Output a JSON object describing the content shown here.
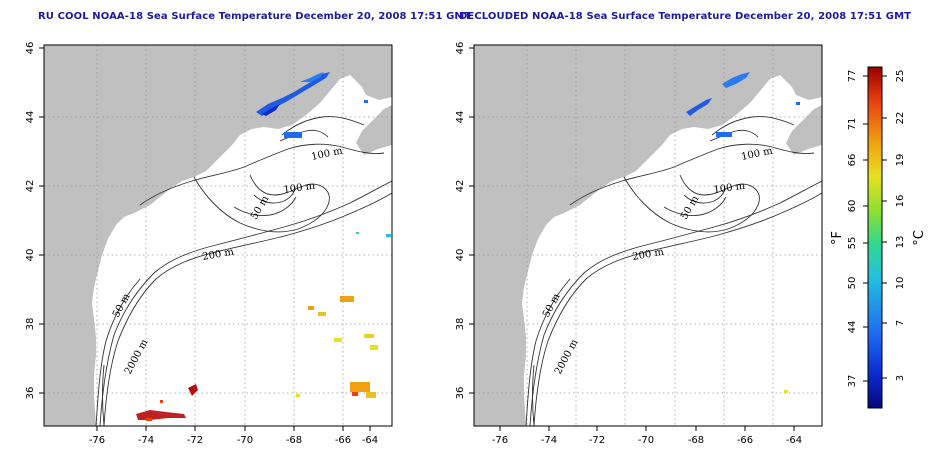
{
  "panels": [
    {
      "id": "left",
      "title": "RU COOL NOAA-18 Sea Surface Temperature December 20, 2008 17:51 GMT",
      "contour_labels": [
        "100 m",
        "100 m",
        "50 m",
        "200 m",
        "50 m",
        "2000 m"
      ]
    },
    {
      "id": "right",
      "title": "DECLOUDED NOAA-18 Sea Surface Temperature December 20, 2008 17:51 GMT",
      "contour_labels": [
        "100 m",
        "100 m",
        "50 m",
        "200 m",
        "50 m",
        "2000 m"
      ]
    }
  ],
  "map_axes": {
    "x_ticks": [
      "-76",
      "-74",
      "-72",
      "-70",
      "-68",
      "-66",
      "-64"
    ],
    "y_ticks": [
      "46",
      "44",
      "42",
      "40",
      "38",
      "36"
    ],
    "lon_range": [
      -77,
      -63
    ],
    "lat_range": [
      35,
      46
    ],
    "grid": "dotted"
  },
  "colorbar": {
    "f_ticks": [
      "77",
      "71",
      "66",
      "60",
      "55",
      "50",
      "44",
      "37"
    ],
    "c_ticks": [
      "25",
      "22",
      "19",
      "16",
      "13",
      "10",
      "7",
      "3"
    ],
    "f_unit": "°F",
    "c_unit": "°C",
    "colors": [
      "#08087a",
      "#0a2ad0",
      "#1f6cf0",
      "#22c0e0",
      "#30d890",
      "#8ee030",
      "#e8e020",
      "#f0a010",
      "#e84010",
      "#9a0000"
    ]
  },
  "colors": {
    "land": "#c0c0c0",
    "ocean": "#ffffff",
    "title": "#1a1aa0"
  }
}
